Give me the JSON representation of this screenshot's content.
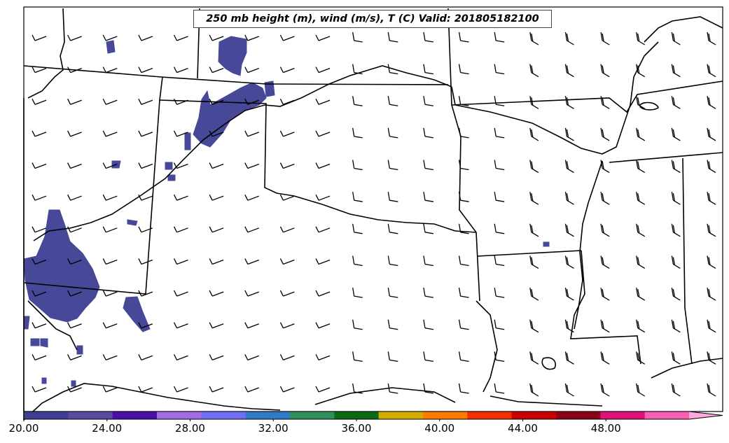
{
  "title": "250 mb height (m), wind (m/s), T (C) Valid: 201805182100",
  "colorbar": {
    "ticks": [
      "20.00",
      "24.00",
      "28.00",
      "32.00",
      "36.00",
      "40.00",
      "44.00",
      "48.00"
    ],
    "tick_values": [
      20,
      24,
      28,
      32,
      36,
      40,
      44,
      48
    ],
    "min": 20,
    "max": 52,
    "extend": "max",
    "colors": [
      "#3e3f92",
      "#5a4c9c",
      "#4a0fa6",
      "#a46de8",
      "#6f6ff5",
      "#3079c7",
      "#2f8f5a",
      "#0b6b14",
      "#d2ad00",
      "#ff7c00",
      "#f22f00",
      "#c80000",
      "#8b0014",
      "#e0107c",
      "#f760b2",
      "#ffa8dc"
    ]
  },
  "shading": {
    "color": "#3e3f92",
    "value_range": [
      20,
      22
    ]
  },
  "wind_barbs": {
    "rows": 12,
    "cols": 20,
    "sample_speeds_ms": [
      10,
      10,
      10,
      10,
      10
    ]
  }
}
